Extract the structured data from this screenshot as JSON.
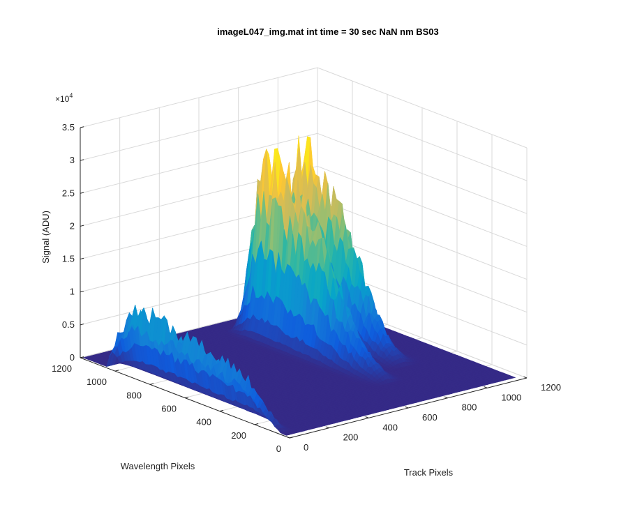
{
  "chart_data": {
    "type": "surface3d",
    "title": "imageL047_img.mat int time = 30 sec  NaN nm BS03",
    "xlabel": "Track Pixels",
    "ylabel": "Wavelength Pixels",
    "zlabel": "Signal (ADU)",
    "z_exponent_label": {
      "base": "×10",
      "exponent": "4"
    },
    "xlim": [
      0,
      1200
    ],
    "ylim": [
      0,
      1200
    ],
    "zlim": [
      0,
      35000
    ],
    "x_ticks": [
      "0",
      "200",
      "400",
      "600",
      "800",
      "1000",
      "1200"
    ],
    "y_ticks": [
      "0",
      "200",
      "400",
      "600",
      "800",
      "1000",
      "1200"
    ],
    "z_ticks": [
      "0",
      "0.5",
      "1",
      "1.5",
      "2",
      "2.5",
      "3",
      "3.5"
    ],
    "grid": true,
    "colormap": "parula",
    "colormap_colors": [
      "#352a87",
      "#0f5cdd",
      "#1481d6",
      "#06a4ca",
      "#2eb7a4",
      "#87bf77",
      "#d1bb59",
      "#fec832",
      "#f9fb0e"
    ],
    "peaks": [
      {
        "x_range": [
          0,
          60
        ],
        "y_range": [
          0,
          1050
        ],
        "max_signal": 11000
      },
      {
        "x_range": [
          660,
          820
        ],
        "y_range": [
          300,
          1100
        ],
        "max_signal": 27000
      },
      {
        "x_range": [
          830,
          1020
        ],
        "y_range": [
          400,
          1100
        ],
        "max_signal": 27500
      }
    ]
  }
}
